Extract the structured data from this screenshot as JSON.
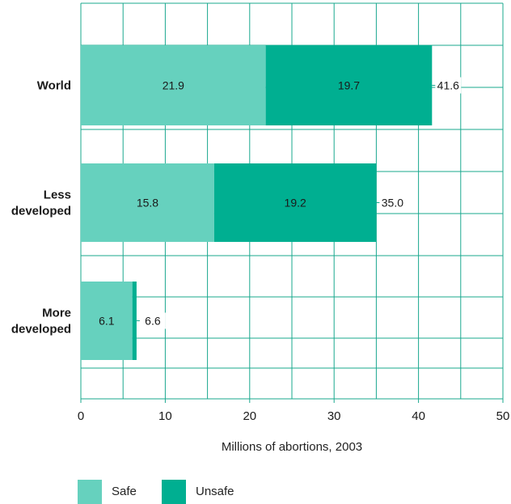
{
  "chart_data": {
    "type": "bar",
    "orientation": "horizontal",
    "stacked": true,
    "categories": [
      "World",
      "Less developed",
      "More developed"
    ],
    "category_lines": [
      [
        "World"
      ],
      [
        "Less",
        "developed"
      ],
      [
        "More",
        "developed"
      ]
    ],
    "series": [
      {
        "name": "Safe",
        "values": [
          21.9,
          15.8,
          6.1
        ],
        "color": "#66d1be"
      },
      {
        "name": "Unsafe",
        "values": [
          19.7,
          19.2,
          0.5
        ],
        "color": "#00af91"
      }
    ],
    "segment_labels": [
      [
        "21.9",
        "15.8",
        "6.1"
      ],
      [
        "19.7",
        "19.2",
        ""
      ]
    ],
    "totals": [
      41.6,
      35.0,
      6.6
    ],
    "total_labels": [
      "41.6",
      "35.0",
      "6.6"
    ],
    "xlabel": "Millions of abortions, 2003",
    "xlim": [
      0,
      50
    ],
    "x_ticks": [
      0,
      10,
      20,
      30,
      40,
      50
    ],
    "grid": true,
    "grid_color": "#19a88e",
    "legend_position": "bottom-left"
  }
}
